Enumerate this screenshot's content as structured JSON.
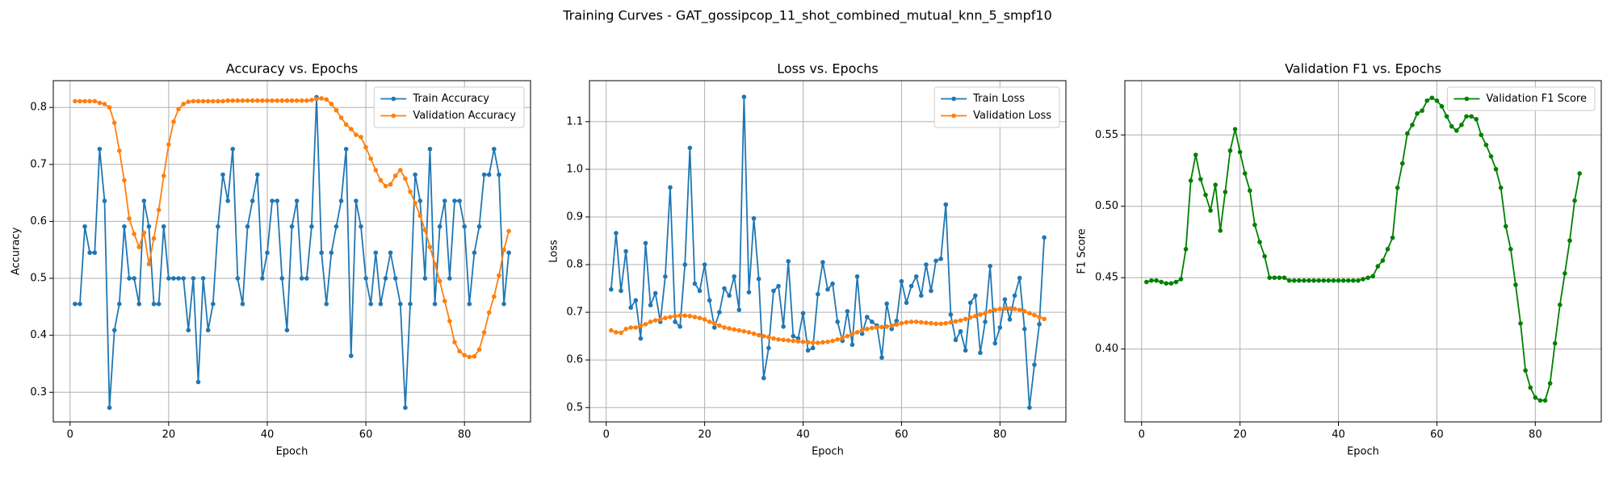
{
  "title": "Training Curves - GAT_gossipcop_11_shot_combined_mutual_knn_5_smpf10",
  "chart_data": [
    {
      "type": "line",
      "title": "Accuracy vs. Epochs",
      "xlabel": "Epoch",
      "ylabel": "Accuracy",
      "x": [
        1,
        2,
        3,
        4,
        5,
        6,
        7,
        8,
        9,
        10,
        11,
        12,
        13,
        14,
        15,
        16,
        17,
        18,
        19,
        20,
        21,
        22,
        23,
        24,
        25,
        26,
        27,
        28,
        29,
        30,
        31,
        32,
        33,
        34,
        35,
        36,
        37,
        38,
        39,
        40,
        41,
        42,
        43,
        44,
        45,
        46,
        47,
        48,
        49,
        50,
        51,
        52,
        53,
        54,
        55,
        56,
        57,
        58,
        59,
        60,
        61,
        62,
        63,
        64,
        65,
        66,
        67,
        68,
        69,
        70,
        71,
        72,
        73,
        74,
        75,
        76,
        77,
        78,
        79,
        80,
        81,
        82,
        83,
        84,
        85,
        86,
        87,
        88,
        89
      ],
      "series": [
        {
          "name": "Train Accuracy",
          "color": "#1f77b4",
          "values": [
            0.455,
            0.455,
            0.591,
            0.545,
            0.545,
            0.727,
            0.636,
            0.273,
            0.409,
            0.455,
            0.591,
            0.5,
            0.5,
            0.455,
            0.636,
            0.591,
            0.455,
            0.455,
            0.591,
            0.5,
            0.5,
            0.5,
            0.5,
            0.409,
            0.5,
            0.318,
            0.5,
            0.409,
            0.455,
            0.591,
            0.682,
            0.636,
            0.727,
            0.5,
            0.455,
            0.591,
            0.636,
            0.682,
            0.5,
            0.545,
            0.636,
            0.636,
            0.5,
            0.409,
            0.591,
            0.636,
            0.5,
            0.5,
            0.591,
            0.818,
            0.545,
            0.455,
            0.545,
            0.591,
            0.636,
            0.727,
            0.364,
            0.636,
            0.591,
            0.5,
            0.455,
            0.545,
            0.455,
            0.5,
            0.545,
            0.5,
            0.455,
            0.273,
            0.455,
            0.682,
            0.636,
            0.5,
            0.727,
            0.455,
            0.591,
            0.636,
            0.5,
            0.636,
            0.636,
            0.591,
            0.455,
            0.545,
            0.591,
            0.682,
            0.682,
            0.727,
            0.682,
            0.455,
            0.545
          ]
        },
        {
          "name": "Validation Accuracy",
          "color": "#ff7f0e",
          "values": [
            0.811,
            0.811,
            0.811,
            0.811,
            0.811,
            0.808,
            0.806,
            0.8,
            0.773,
            0.724,
            0.672,
            0.605,
            0.578,
            0.555,
            0.58,
            0.525,
            0.57,
            0.62,
            0.68,
            0.735,
            0.775,
            0.797,
            0.806,
            0.81,
            0.811,
            0.811,
            0.811,
            0.811,
            0.811,
            0.811,
            0.811,
            0.812,
            0.812,
            0.812,
            0.812,
            0.812,
            0.812,
            0.812,
            0.812,
            0.812,
            0.812,
            0.812,
            0.812,
            0.812,
            0.812,
            0.812,
            0.812,
            0.812,
            0.813,
            0.815,
            0.816,
            0.814,
            0.806,
            0.795,
            0.782,
            0.77,
            0.762,
            0.752,
            0.748,
            0.73,
            0.71,
            0.69,
            0.672,
            0.662,
            0.665,
            0.68,
            0.69,
            0.675,
            0.652,
            0.632,
            0.61,
            0.585,
            0.555,
            0.525,
            0.495,
            0.46,
            0.425,
            0.388,
            0.372,
            0.365,
            0.362,
            0.363,
            0.375,
            0.405,
            0.44,
            0.468,
            0.505,
            0.55,
            0.583
          ]
        }
      ],
      "xlim": [
        -3.4,
        93.4
      ],
      "xticks": [
        0,
        20,
        40,
        60,
        80
      ],
      "ylim": [
        0.248,
        0.847
      ],
      "yticks": [
        0.3,
        0.4,
        0.5,
        0.6,
        0.7,
        0.8
      ],
      "grid": true,
      "legend": "upper right"
    },
    {
      "type": "line",
      "title": "Loss vs. Epochs",
      "xlabel": "Epoch",
      "ylabel": "Loss",
      "x": [
        1,
        2,
        3,
        4,
        5,
        6,
        7,
        8,
        9,
        10,
        11,
        12,
        13,
        14,
        15,
        16,
        17,
        18,
        19,
        20,
        21,
        22,
        23,
        24,
        25,
        26,
        27,
        28,
        29,
        30,
        31,
        32,
        33,
        34,
        35,
        36,
        37,
        38,
        39,
        40,
        41,
        42,
        43,
        44,
        45,
        46,
        47,
        48,
        49,
        50,
        51,
        52,
        53,
        54,
        55,
        56,
        57,
        58,
        59,
        60,
        61,
        62,
        63,
        64,
        65,
        66,
        67,
        68,
        69,
        70,
        71,
        72,
        73,
        74,
        75,
        76,
        77,
        78,
        79,
        80,
        81,
        82,
        83,
        84,
        85,
        86,
        87,
        88,
        89
      ],
      "series": [
        {
          "name": "Train Loss",
          "color": "#1f77b4",
          "values": [
            0.748,
            0.866,
            0.745,
            0.828,
            0.71,
            0.725,
            0.645,
            0.845,
            0.715,
            0.74,
            0.68,
            0.775,
            0.962,
            0.68,
            0.67,
            0.8,
            1.045,
            0.76,
            0.745,
            0.8,
            0.725,
            0.668,
            0.7,
            0.75,
            0.735,
            0.775,
            0.705,
            1.152,
            0.742,
            0.897,
            0.77,
            0.562,
            0.625,
            0.745,
            0.755,
            0.67,
            0.807,
            0.65,
            0.645,
            0.698,
            0.62,
            0.625,
            0.738,
            0.805,
            0.748,
            0.76,
            0.68,
            0.64,
            0.702,
            0.632,
            0.775,
            0.655,
            0.69,
            0.68,
            0.672,
            0.605,
            0.718,
            0.665,
            0.682,
            0.765,
            0.72,
            0.755,
            0.775,
            0.735,
            0.8,
            0.745,
            0.808,
            0.812,
            0.926,
            0.695,
            0.642,
            0.66,
            0.62,
            0.72,
            0.735,
            0.615,
            0.68,
            0.797,
            0.635,
            0.668,
            0.727,
            0.685,
            0.735,
            0.772,
            0.665,
            0.5,
            0.59,
            0.675,
            0.857
          ]
        },
        {
          "name": "Validation Loss",
          "color": "#ff7f0e",
          "values": [
            0.662,
            0.658,
            0.657,
            0.665,
            0.668,
            0.668,
            0.672,
            0.675,
            0.68,
            0.683,
            0.685,
            0.688,
            0.69,
            0.692,
            0.693,
            0.693,
            0.692,
            0.69,
            0.688,
            0.685,
            0.68,
            0.676,
            0.672,
            0.668,
            0.666,
            0.664,
            0.662,
            0.66,
            0.658,
            0.655,
            0.652,
            0.65,
            0.648,
            0.645,
            0.643,
            0.642,
            0.641,
            0.64,
            0.639,
            0.638,
            0.637,
            0.636,
            0.636,
            0.637,
            0.638,
            0.64,
            0.643,
            0.646,
            0.65,
            0.654,
            0.658,
            0.662,
            0.665,
            0.667,
            0.668,
            0.669,
            0.67,
            0.672,
            0.674,
            0.677,
            0.679,
            0.68,
            0.68,
            0.679,
            0.678,
            0.677,
            0.676,
            0.676,
            0.677,
            0.679,
            0.681,
            0.683,
            0.686,
            0.689,
            0.692,
            0.695,
            0.698,
            0.702,
            0.705,
            0.707,
            0.708,
            0.708,
            0.707,
            0.705,
            0.702,
            0.698,
            0.694,
            0.69,
            0.686
          ]
        }
      ],
      "xlim": [
        -3.4,
        93.4
      ],
      "xticks": [
        0,
        20,
        40,
        60,
        80
      ],
      "ylim": [
        0.47,
        1.186
      ],
      "yticks": [
        0.5,
        0.6,
        0.7,
        0.8,
        0.9,
        {
          "value": 1,
          "label": "1.0"
        },
        1.1
      ],
      "grid": true,
      "legend": "upper right"
    },
    {
      "type": "line",
      "title": "Validation F1 vs. Epochs",
      "xlabel": "Epoch",
      "ylabel": "F1 Score",
      "x": [
        1,
        2,
        3,
        4,
        5,
        6,
        7,
        8,
        9,
        10,
        11,
        12,
        13,
        14,
        15,
        16,
        17,
        18,
        19,
        20,
        21,
        22,
        23,
        24,
        25,
        26,
        27,
        28,
        29,
        30,
        31,
        32,
        33,
        34,
        35,
        36,
        37,
        38,
        39,
        40,
        41,
        42,
        43,
        44,
        45,
        46,
        47,
        48,
        49,
        50,
        51,
        52,
        53,
        54,
        55,
        56,
        57,
        58,
        59,
        60,
        61,
        62,
        63,
        64,
        65,
        66,
        67,
        68,
        69,
        70,
        71,
        72,
        73,
        74,
        75,
        76,
        77,
        78,
        79,
        80,
        81,
        82,
        83,
        84,
        85,
        86,
        87,
        88,
        89
      ],
      "series": [
        {
          "name": "Validation F1 Score",
          "color": "#008000",
          "values": [
            0.447,
            0.448,
            0.448,
            0.447,
            0.446,
            0.446,
            0.447,
            0.449,
            0.47,
            0.518,
            0.536,
            0.519,
            0.508,
            0.497,
            0.515,
            0.483,
            0.51,
            0.539,
            0.554,
            0.538,
            0.523,
            0.511,
            0.487,
            0.475,
            0.465,
            0.45,
            0.45,
            0.45,
            0.45,
            0.448,
            0.448,
            0.448,
            0.448,
            0.448,
            0.448,
            0.448,
            0.448,
            0.448,
            0.448,
            0.448,
            0.448,
            0.448,
            0.448,
            0.448,
            0.449,
            0.45,
            0.451,
            0.458,
            0.462,
            0.47,
            0.478,
            0.513,
            0.53,
            0.551,
            0.557,
            0.565,
            0.567,
            0.574,
            0.576,
            0.574,
            0.57,
            0.563,
            0.556,
            0.553,
            0.557,
            0.563,
            0.563,
            0.561,
            0.55,
            0.543,
            0.535,
            0.526,
            0.513,
            0.486,
            0.47,
            0.445,
            0.418,
            0.385,
            0.373,
            0.366,
            0.364,
            0.364,
            0.376,
            0.404,
            0.431,
            0.453,
            0.476,
            0.504,
            0.523
          ]
        }
      ],
      "xlim": [
        -3.4,
        93.4
      ],
      "xticks": [
        0,
        20,
        40,
        60,
        80
      ],
      "ylim": [
        0.349,
        0.588
      ],
      "yticks": [
        {
          "value": 0.4,
          "label": "0.40"
        },
        0.45,
        {
          "value": 0.5,
          "label": "0.50"
        },
        0.55
      ],
      "grid": true,
      "legend": "upper right"
    }
  ]
}
